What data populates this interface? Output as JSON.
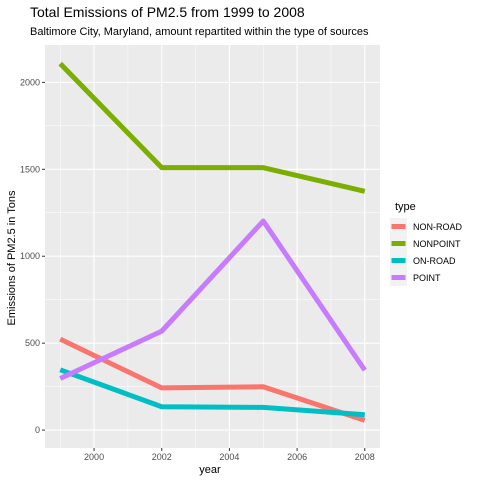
{
  "chart_data": {
    "type": "line",
    "title": "Total Emissions of PM2.5 from 1999 to 2008",
    "subtitle": "Baltimore City, Maryland, amount repartited within the type of sources",
    "xlabel": "year",
    "ylabel": "Emissions of PM2.5 in Tons",
    "x": [
      1999,
      2002,
      2005,
      2008
    ],
    "xlim": [
      1998.55,
      2008.45
    ],
    "ylim": [
      -103,
      2215
    ],
    "x_ticks": [
      2000,
      2002,
      2004,
      2006,
      2008
    ],
    "y_ticks": [
      0,
      500,
      1000,
      1500,
      2000
    ],
    "grid": true,
    "panel_background": "#ebebeb",
    "legend_title": "type",
    "legend_position": "right",
    "series": [
      {
        "name": "NON-ROAD",
        "color": "#f8766d",
        "values": [
          522.94,
          242.63,
          248.93,
          55.82
        ]
      },
      {
        "name": "NONPOINT",
        "color": "#7cae00",
        "values": [
          2107.63,
          1509.5,
          1509.5,
          1373.21
        ]
      },
      {
        "name": "ON-ROAD",
        "color": "#00bfc4",
        "values": [
          346.82,
          134.31,
          130.43,
          88.28
        ]
      },
      {
        "name": "POINT",
        "color": "#c77cff",
        "values": [
          296.8,
          569.26,
          1202.49,
          344.98
        ]
      }
    ]
  }
}
